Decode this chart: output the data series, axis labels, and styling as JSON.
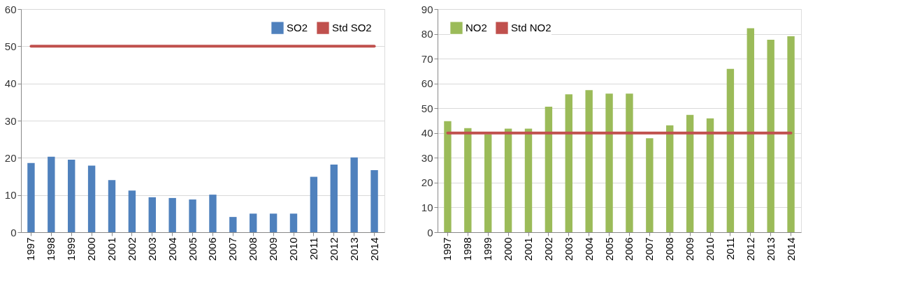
{
  "chart_data": [
    {
      "type": "bar",
      "categories": [
        "1997",
        "1998",
        "1999",
        "2000",
        "2001",
        "2002",
        "2003",
        "2004",
        "2005",
        "2006",
        "2007",
        "2008",
        "2009",
        "2010",
        "2011",
        "2012",
        "2013",
        "2014"
      ],
      "series": [
        {
          "name": "SO2",
          "color": "#4f81bd",
          "values": [
            18.6,
            20.3,
            19.5,
            17.9,
            14,
            11.2,
            9.4,
            9.2,
            8.8,
            10.1,
            4.1,
            5,
            5,
            5,
            14.9,
            18.2,
            20.1,
            16.7
          ]
        },
        {
          "name": "Std SO2",
          "type": "line",
          "color": "#c0504d",
          "values": [
            50,
            50,
            50,
            50,
            50,
            50,
            50,
            50,
            50,
            50,
            50,
            50,
            50,
            50,
            50,
            50,
            50,
            50
          ]
        }
      ],
      "ylim": [
        0,
        60
      ],
      "yticks": [
        0,
        10,
        20,
        30,
        40,
        50,
        60
      ],
      "grid": "y",
      "legend": "top right"
    },
    {
      "type": "bar",
      "categories": [
        "1997",
        "1998",
        "1999",
        "2000",
        "2001",
        "2002",
        "2003",
        "2004",
        "2005",
        "2006",
        "2007",
        "2008",
        "2009",
        "2010",
        "2011",
        "2012",
        "2013",
        "2014"
      ],
      "series": [
        {
          "name": "NO2",
          "color": "#9bbb59",
          "values": [
            44.8,
            42,
            39.5,
            41.8,
            41.8,
            50.6,
            55.6,
            57.3,
            55.9,
            55.9,
            37.9,
            43.1,
            47.3,
            45.9,
            65.9,
            82.3,
            77.6,
            79
          ]
        },
        {
          "name": "Std NO2",
          "type": "line",
          "color": "#c0504d",
          "values": [
            40,
            40,
            40,
            40,
            40,
            40,
            40,
            40,
            40,
            40,
            40,
            40,
            40,
            40,
            40,
            40,
            40,
            40
          ]
        }
      ],
      "ylim": [
        0,
        90
      ],
      "yticks": [
        0,
        10,
        20,
        30,
        40,
        50,
        60,
        70,
        80,
        90
      ],
      "grid": "y",
      "legend": "top left"
    }
  ]
}
